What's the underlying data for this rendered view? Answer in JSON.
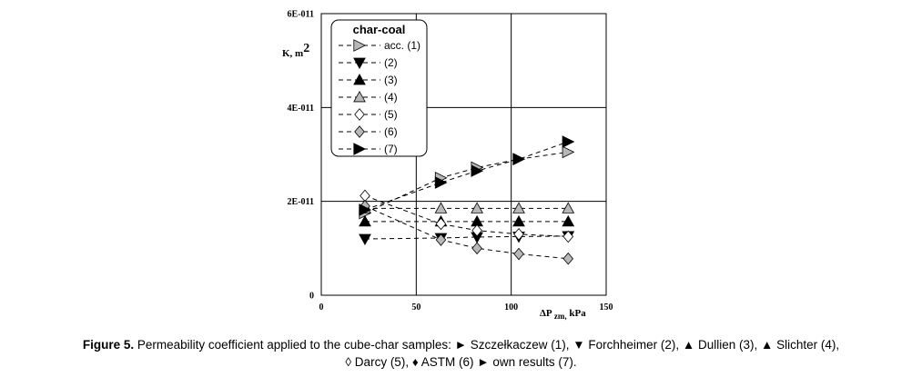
{
  "chart_data": {
    "type": "scatter",
    "xlabel": "ΔP",
    "xlabel_sub": "zm,",
    "xlabel_unit": "kPa",
    "ylabel": "K, m",
    "ylabel_sup": "2",
    "xlim": [
      0,
      150
    ],
    "ylim": [
      0,
      6e-11
    ],
    "x_ticks": [
      0,
      50,
      100,
      150
    ],
    "x_tick_labels": [
      "0",
      "50",
      "100",
      "150"
    ],
    "y_ticks": [
      0,
      2e-11,
      4e-11,
      6e-11
    ],
    "y_tick_labels": [
      "0",
      "2E-011",
      "4E-011",
      "6E-011"
    ],
    "grid": true,
    "legend_title": "char-coal",
    "series": [
      {
        "name": "acc. (1)",
        "marker": "triangle-right",
        "fill": "#b8b8b8",
        "x": [
          23,
          63,
          82,
          104,
          130
        ],
        "y": [
          1.75e-11,
          2.5e-11,
          2.72e-11,
          2.9e-11,
          3.05e-11
        ]
      },
      {
        "name": "(2)",
        "marker": "triangle-down",
        "fill": "#000000",
        "x": [
          23,
          63,
          82,
          104,
          130
        ],
        "y": [
          1.2e-11,
          1.22e-11,
          1.24e-11,
          1.25e-11,
          1.26e-11
        ]
      },
      {
        "name": "(3)",
        "marker": "triangle-up",
        "fill": "#000000",
        "x": [
          23,
          63,
          82,
          104,
          130
        ],
        "y": [
          1.57e-11,
          1.57e-11,
          1.57e-11,
          1.57e-11,
          1.57e-11
        ]
      },
      {
        "name": "(4)",
        "marker": "triangle-up",
        "fill": "#b8b8b8",
        "x": [
          23,
          63,
          82,
          104,
          130
        ],
        "y": [
          1.85e-11,
          1.85e-11,
          1.85e-11,
          1.85e-11,
          1.85e-11
        ]
      },
      {
        "name": "(5)",
        "marker": "diamond",
        "fill": "#ffffff",
        "x": [
          23,
          63,
          82,
          104,
          130
        ],
        "y": [
          2.12e-11,
          1.52e-11,
          1.38e-11,
          1.3e-11,
          1.25e-11
        ]
      },
      {
        "name": "(6)",
        "marker": "diamond",
        "fill": "#b8b8b8",
        "x": [
          23,
          63,
          82,
          104,
          130
        ],
        "y": [
          1.9e-11,
          1.18e-11,
          1e-11,
          8.8e-12,
          7.8e-12
        ]
      },
      {
        "name": "(7)",
        "marker": "triangle-right",
        "fill": "#000000",
        "x": [
          23,
          63,
          82,
          104,
          130
        ],
        "y": [
          1.82e-11,
          2.4e-11,
          2.65e-11,
          2.9e-11,
          3.27e-11
        ]
      }
    ]
  },
  "caption": {
    "label": "Figure 5.",
    "line1": "Permeability coefficient applied to the cube-char samples: ► Szczełkaczew (1), ▼ Forchheimer (2), ▲ Dullien (3), ▲ Slichter (4),",
    "line2": "◊ Darcy (5), ♦ ASTM (6) ► own results (7)."
  }
}
